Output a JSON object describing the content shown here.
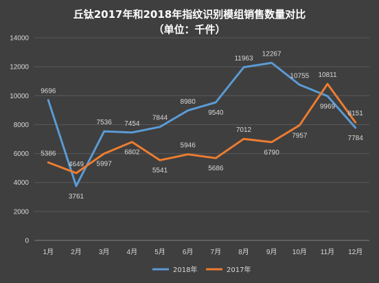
{
  "chart_data": {
    "type": "line",
    "title": "丘钛2017年和2018年指纹识别模组销售数量对比",
    "subtitle": "（单位：千件）",
    "categories": [
      "1月",
      "2月",
      "3月",
      "4月",
      "5月",
      "6月",
      "7月",
      "8月",
      "9月",
      "10月",
      "11月",
      "12月"
    ],
    "series": [
      {
        "name": "2018年",
        "color": "#5b9bd5",
        "values": [
          9696,
          3761,
          7536,
          7454,
          7844,
          8980,
          9540,
          11963,
          12267,
          10755,
          9969,
          7784
        ]
      },
      {
        "name": "2017年",
        "color": "#ed7d31",
        "values": [
          5386,
          4649,
          5997,
          6802,
          5541,
          5946,
          5686,
          7012,
          6790,
          7957,
          10811,
          8151
        ]
      }
    ],
    "ylim": [
      0,
      14000
    ],
    "yticks": [
      0,
      2000,
      4000,
      6000,
      8000,
      10000,
      12000,
      14000
    ],
    "grid": true,
    "legend_position": "bottom"
  }
}
